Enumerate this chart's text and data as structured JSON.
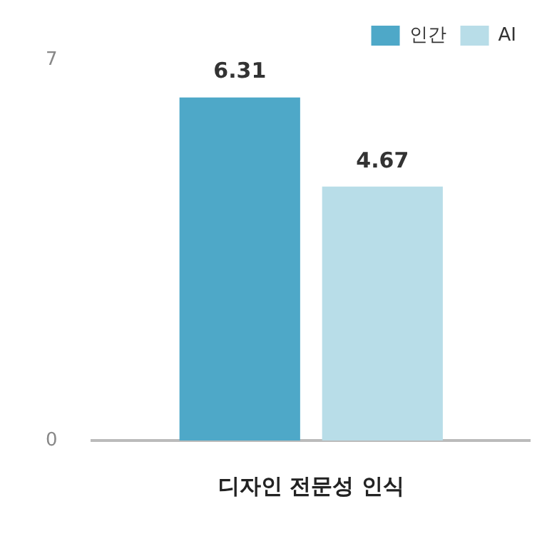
{
  "chart_data": {
    "type": "bar",
    "categories": [
      "디자인 전문성 인식"
    ],
    "series": [
      {
        "name": "인간",
        "color": "#4ea8c8",
        "values": [
          6.31
        ]
      },
      {
        "name": "AI",
        "color": "#b8dde8",
        "values": [
          4.67
        ]
      }
    ],
    "ylim": [
      0,
      7
    ],
    "yticks": [
      0,
      7
    ],
    "grid": false,
    "legend": "top right",
    "data_labels": true
  }
}
